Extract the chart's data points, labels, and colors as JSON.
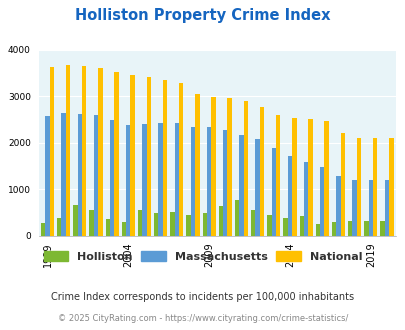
{
  "title": "Holliston Property Crime Index",
  "years": [
    1999,
    2000,
    2001,
    2002,
    2003,
    2004,
    2005,
    2006,
    2007,
    2008,
    2009,
    2010,
    2011,
    2012,
    2013,
    2014,
    2015,
    2016,
    2017,
    2018,
    2019,
    2020
  ],
  "holliston_values": [
    270,
    390,
    670,
    560,
    360,
    310,
    550,
    490,
    510,
    450,
    490,
    640,
    780,
    560,
    450,
    390,
    420,
    250,
    310,
    330,
    330,
    330
  ],
  "massachusetts_values": [
    2580,
    2640,
    2620,
    2600,
    2480,
    2380,
    2410,
    2420,
    2420,
    2340,
    2330,
    2280,
    2170,
    2080,
    1880,
    1720,
    1590,
    1470,
    1280,
    1200,
    1200,
    1200
  ],
  "national_values": [
    3620,
    3670,
    3650,
    3600,
    3510,
    3450,
    3400,
    3350,
    3280,
    3050,
    2980,
    2950,
    2900,
    2760,
    2600,
    2520,
    2500,
    2470,
    2200,
    2110,
    2110,
    2110
  ],
  "color_holliston": "#7db832",
  "color_massachusetts": "#5b9bd5",
  "color_national": "#ffc000",
  "bg_color": "#e8f4f8",
  "title_color": "#1565c0",
  "subtitle": "Crime Index corresponds to incidents per 100,000 inhabitants",
  "subtitle_color": "#333333",
  "footer": "© 2025 CityRating.com - https://www.cityrating.com/crime-statistics/",
  "footer_color": "#888888",
  "ylim": [
    0,
    4000
  ],
  "yticks": [
    0,
    1000,
    2000,
    3000,
    4000
  ],
  "tick_years": [
    1999,
    2004,
    2009,
    2014,
    2019
  ],
  "bar_width": 0.27
}
